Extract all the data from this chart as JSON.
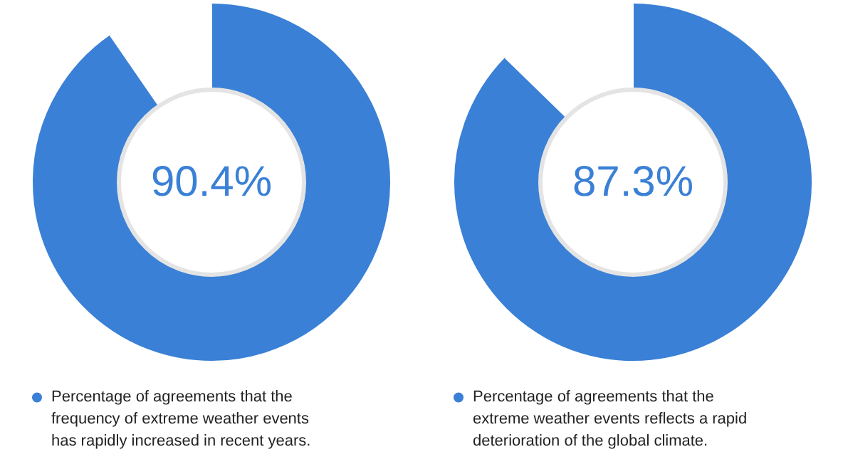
{
  "chart_data": [
    {
      "type": "donut",
      "categories": [
        "Percentage of agreements that the\nfrequency of extreme weather events\nhas rapidly increased in recent years.",
        null
      ],
      "values": [
        90.4,
        9.6
      ],
      "colors": [
        "#3a80d6",
        "#ffffff"
      ],
      "value_labels": [
        "90.4%",
        null
      ],
      "legend": "bottom"
    },
    {
      "type": "donut",
      "categories": [
        "Percentage of agreements that the\nextreme weather events reflects a rapid\ndeterioration of the global climate.",
        null
      ],
      "values": [
        87.3,
        12.7
      ],
      "colors": [
        "#3a80d6",
        "#ffffff"
      ],
      "value_labels": [
        "87.3%",
        null
      ],
      "legend": "bottom"
    }
  ]
}
